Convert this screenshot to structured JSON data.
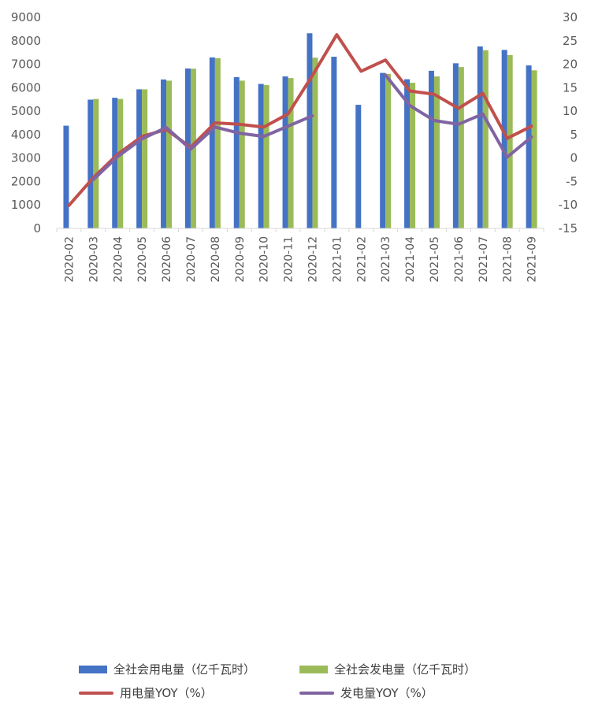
{
  "chart_data": {
    "type": "bar",
    "categories": [
      "2020-02",
      "2020-03",
      "2020-04",
      "2020-05",
      "2020-06",
      "2020-07",
      "2020-08",
      "2020-09",
      "2020-10",
      "2020-11",
      "2020-12",
      "2021-01",
      "2021-02",
      "2021-03",
      "2021-04",
      "2021-05",
      "2021-06",
      "2021-07",
      "2021-08",
      "2021-09"
    ],
    "left_axis": {
      "min": 0,
      "max": 9000,
      "step": 1000,
      "ticks": [
        "0",
        "1000",
        "2000",
        "3000",
        "4000",
        "5000",
        "6000",
        "7000",
        "8000",
        "9000"
      ]
    },
    "right_axis": {
      "min": -15,
      "max": 30,
      "step": 5,
      "ticks": [
        "-15",
        "-10",
        "-5",
        "0",
        "5",
        "10",
        "15",
        "20",
        "25",
        "30"
      ]
    },
    "grid": false,
    "legend_position": "bottom",
    "series": [
      {
        "name": "全社会用电量（亿千瓦时）",
        "type": "bar",
        "axis": "left",
        "color": "#4472C4",
        "values": [
          4380,
          5490,
          5570,
          5930,
          6350,
          6820,
          7290,
          6450,
          6160,
          6480,
          8320,
          7320,
          5270,
          6630,
          6360,
          6720,
          7040,
          7760,
          7610,
          6950
        ]
      },
      {
        "name": "全社会发电量（亿千瓦时）",
        "type": "bar",
        "axis": "left",
        "color": "#9BBB59",
        "values": [
          null,
          5520,
          5520,
          5930,
          6300,
          6810,
          7260,
          6300,
          6110,
          6410,
          7280,
          null,
          null,
          6590,
          6210,
          6480,
          6880,
          7600,
          7390,
          6740
        ]
      },
      {
        "name": "用电量YOY（%）",
        "type": "line",
        "axis": "right",
        "color": "#C0504D",
        "values": [
          -10.1,
          -4.2,
          0.8,
          4.6,
          6.1,
          2.3,
          7.5,
          7.2,
          6.6,
          9.4,
          17.6,
          26.3,
          18.5,
          20.9,
          14.3,
          13.6,
          10.6,
          13.8,
          4.2,
          6.8
        ]
      },
      {
        "name": "发电量YOY（%）",
        "type": "line",
        "axis": "right",
        "color": "#8064A2",
        "values": [
          null,
          -4.6,
          0.3,
          4.1,
          6.5,
          1.9,
          6.6,
          5.3,
          4.6,
          6.8,
          9.0,
          null,
          null,
          17.7,
          11.2,
          8.0,
          7.2,
          9.4,
          0.2,
          4.5
        ]
      }
    ]
  }
}
